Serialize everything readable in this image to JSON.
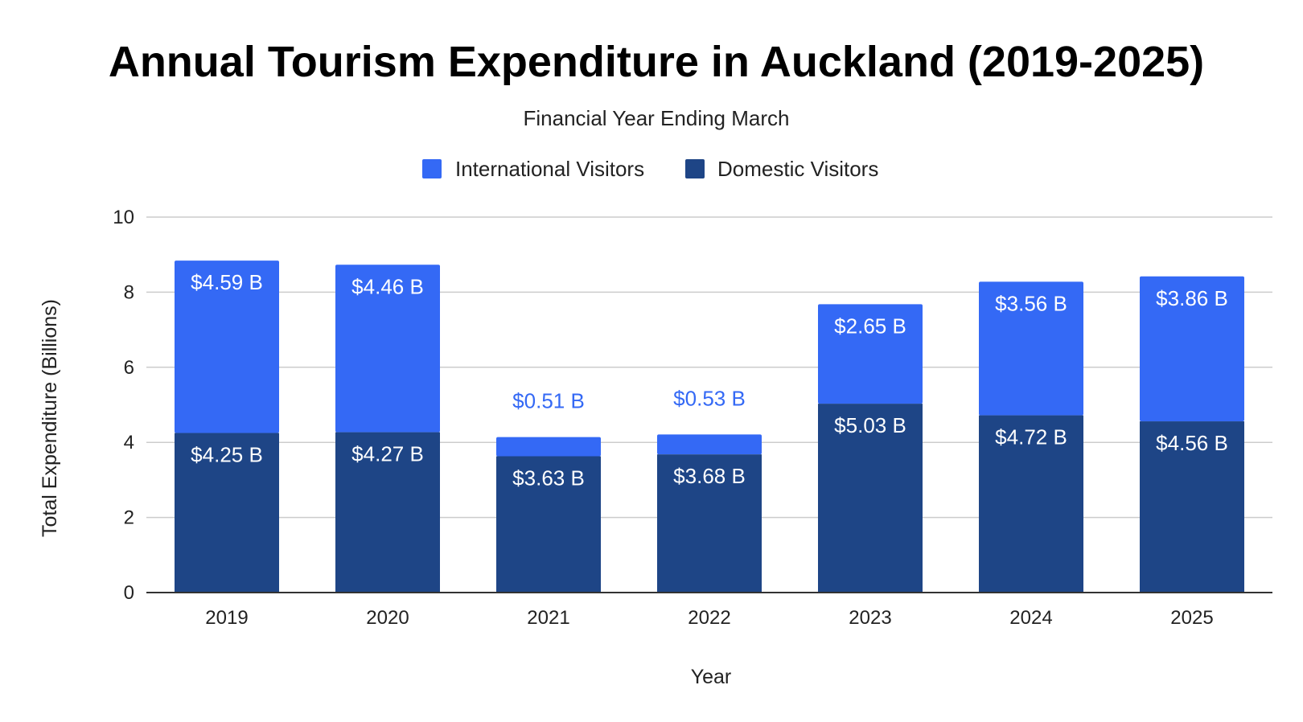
{
  "chart_data": {
    "type": "bar",
    "stacked": true,
    "title": "Annual Tourism Expenditure in Auckland (2019-2025)",
    "subtitle": "Financial Year Ending March",
    "xlabel": "Year",
    "ylabel": "Total Expenditure (Billions)",
    "ylim": [
      0,
      10
    ],
    "yticks": [
      0,
      2,
      4,
      6,
      8,
      10
    ],
    "grid": true,
    "legend_position": "top",
    "categories": [
      "2019",
      "2020",
      "2021",
      "2022",
      "2023",
      "2024",
      "2025"
    ],
    "series": [
      {
        "name": "Domestic Visitors",
        "color": "#1e4586",
        "values": [
          4.25,
          4.27,
          3.63,
          3.68,
          5.03,
          4.72,
          4.56
        ],
        "labels": [
          "$4.25 B",
          "$4.27 B",
          "$3.63 B",
          "$3.68 B",
          "$5.03 B",
          "$4.72 B",
          "$4.56 B"
        ]
      },
      {
        "name": "International Visitors",
        "color": "#3469f5",
        "values": [
          4.59,
          4.46,
          0.51,
          0.53,
          2.65,
          3.56,
          3.86
        ],
        "labels": [
          "$4.59 B",
          "$4.46 B",
          "$0.51 B",
          "$0.53 B",
          "$2.65 B",
          "$3.56 B",
          "$3.86 B"
        ]
      }
    ],
    "legend_order": [
      "International Visitors",
      "Domestic Visitors"
    ]
  }
}
